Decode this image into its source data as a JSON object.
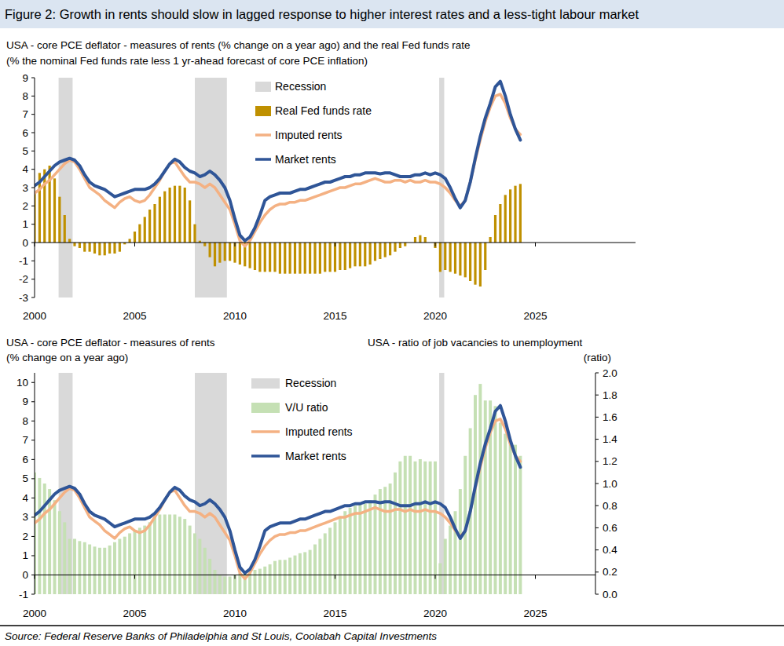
{
  "title": "Figure 2: Growth in rents should slow in lagged response to higher interest rates and a less-tight labour market",
  "source": "Source: Federal Reserve Banks of Philadelphia and St Louis, Coolabah Capital Investments",
  "chart_data": [
    {
      "type": "line",
      "title": "USA - core PCE deflator - measures of rents (% change on a year ago)  and  the real Fed funds rate",
      "subtitle": "(% the nominal Fed funds rate less 1 yr-ahead forecast of core PCE inflation)",
      "legend": "top",
      "grid": false,
      "xlim": [
        2000,
        2030
      ],
      "xticks": [
        2000,
        2005,
        2010,
        2015,
        2020,
        2025
      ],
      "ylim": [
        -3,
        9
      ],
      "yticks": [
        -3,
        -2,
        -1,
        0,
        1,
        2,
        3,
        4,
        5,
        6,
        7,
        8,
        9
      ],
      "recessions": {
        "name": "Recession",
        "color": "#d9d9d9",
        "ranges": [
          [
            2001.2,
            2001.9
          ],
          [
            2008.0,
            2009.6
          ],
          [
            2020.2,
            2020.45
          ]
        ]
      },
      "x": [
        2000,
        2000.25,
        2000.5,
        2000.75,
        2001,
        2001.25,
        2001.5,
        2001.75,
        2002,
        2002.25,
        2002.5,
        2002.75,
        2003,
        2003.25,
        2003.5,
        2003.75,
        2004,
        2004.25,
        2004.5,
        2004.75,
        2005,
        2005.25,
        2005.5,
        2005.75,
        2006,
        2006.25,
        2006.5,
        2006.75,
        2007,
        2007.25,
        2007.5,
        2007.75,
        2008,
        2008.25,
        2008.5,
        2008.75,
        2009,
        2009.25,
        2009.5,
        2009.75,
        2010,
        2010.25,
        2010.5,
        2010.75,
        2011,
        2011.25,
        2011.5,
        2011.75,
        2012,
        2012.25,
        2012.5,
        2012.75,
        2013,
        2013.25,
        2013.5,
        2013.75,
        2014,
        2014.25,
        2014.5,
        2014.75,
        2015,
        2015.25,
        2015.5,
        2015.75,
        2016,
        2016.25,
        2016.5,
        2016.75,
        2017,
        2017.25,
        2017.5,
        2017.75,
        2018,
        2018.25,
        2018.5,
        2018.75,
        2019,
        2019.25,
        2019.5,
        2019.75,
        2020,
        2020.25,
        2020.5,
        2020.75,
        2021,
        2021.25,
        2021.5,
        2021.75,
        2022,
        2022.25,
        2022.5,
        2022.75,
        2023,
        2023.25,
        2023.5,
        2023.75,
        2024,
        2024.25
      ],
      "series": [
        {
          "name": "Real Fed funds rate",
          "type": "bar",
          "color": "#bf9000",
          "values": [
            2.8,
            3.8,
            4.0,
            4.2,
            3.5,
            2.5,
            1.5,
            0.2,
            -0.2,
            -0.3,
            -0.5,
            -0.5,
            -0.6,
            -0.7,
            -0.7,
            -0.6,
            -0.6,
            -0.5,
            -0.1,
            0.2,
            0.6,
            1.0,
            1.4,
            1.8,
            2.1,
            2.5,
            2.8,
            3.0,
            3.1,
            3.1,
            3.0,
            2.3,
            1.0,
            0.1,
            -0.2,
            -0.8,
            -1.3,
            -1.1,
            -1.0,
            -1.0,
            -1.1,
            -1.2,
            -1.3,
            -1.4,
            -1.5,
            -1.6,
            -1.6,
            -1.6,
            -1.6,
            -1.7,
            -1.7,
            -1.7,
            -1.7,
            -1.7,
            -1.7,
            -1.7,
            -1.7,
            -1.7,
            -1.6,
            -1.6,
            -1.6,
            -1.5,
            -1.5,
            -1.4,
            -1.3,
            -1.3,
            -1.3,
            -1.2,
            -1.0,
            -0.9,
            -0.8,
            -0.7,
            -0.5,
            -0.3,
            -0.2,
            0.0,
            0.3,
            0.4,
            0.3,
            0.0,
            -0.3,
            -1.6,
            -1.5,
            -1.6,
            -1.7,
            -1.8,
            -1.9,
            -2.1,
            -2.3,
            -2.4,
            -1.5,
            0.3,
            1.5,
            2.1,
            2.6,
            2.9,
            3.1,
            3.2
          ]
        },
        {
          "name": "Imputed rents",
          "type": "line",
          "color": "#f4b183",
          "values": [
            2.7,
            2.9,
            3.2,
            3.4,
            3.7,
            4.0,
            4.3,
            4.5,
            4.4,
            4.0,
            3.5,
            3.0,
            2.8,
            2.6,
            2.3,
            2.1,
            1.9,
            2.2,
            2.4,
            2.5,
            2.3,
            2.2,
            2.3,
            2.6,
            3.0,
            3.4,
            3.9,
            4.3,
            4.4,
            4.0,
            3.6,
            3.3,
            3.3,
            3.2,
            3.0,
            3.2,
            3.0,
            2.6,
            2.2,
            1.8,
            1.0,
            0.1,
            -0.2,
            0.1,
            0.6,
            1.1,
            1.5,
            1.8,
            2.0,
            2.1,
            2.1,
            2.2,
            2.2,
            2.3,
            2.3,
            2.4,
            2.5,
            2.6,
            2.7,
            2.8,
            2.9,
            3.0,
            3.0,
            3.1,
            3.2,
            3.2,
            3.3,
            3.4,
            3.5,
            3.4,
            3.3,
            3.3,
            3.4,
            3.4,
            3.3,
            3.4,
            3.3,
            3.3,
            3.4,
            3.3,
            3.3,
            3.2,
            3.0,
            2.7,
            2.3,
            2.0,
            2.3,
            3.3,
            4.5,
            5.6,
            6.6,
            7.4,
            8.0,
            8.1,
            7.6,
            6.8,
            6.2,
            5.9
          ]
        },
        {
          "name": "Market rents",
          "type": "line",
          "color": "#2f5597",
          "values": [
            3.1,
            3.3,
            3.6,
            3.9,
            4.2,
            4.4,
            4.5,
            4.6,
            4.5,
            4.2,
            3.7,
            3.3,
            3.1,
            3.0,
            2.9,
            2.7,
            2.5,
            2.6,
            2.7,
            2.8,
            2.9,
            2.9,
            2.9,
            3.0,
            3.2,
            3.5,
            3.9,
            4.3,
            4.55,
            4.4,
            4.1,
            3.9,
            3.8,
            3.6,
            3.7,
            3.9,
            3.7,
            3.4,
            3.0,
            2.3,
            1.3,
            0.4,
            0.1,
            0.3,
            0.8,
            1.5,
            2.3,
            2.5,
            2.6,
            2.7,
            2.7,
            2.7,
            2.8,
            2.9,
            2.9,
            3.0,
            3.1,
            3.2,
            3.3,
            3.3,
            3.4,
            3.5,
            3.6,
            3.6,
            3.7,
            3.7,
            3.8,
            3.8,
            3.8,
            3.75,
            3.8,
            3.8,
            3.7,
            3.6,
            3.6,
            3.6,
            3.7,
            3.7,
            3.8,
            3.7,
            3.8,
            3.7,
            3.5,
            3.0,
            2.4,
            1.9,
            2.3,
            3.3,
            4.6,
            5.8,
            6.8,
            7.6,
            8.5,
            8.8,
            8.0,
            7.0,
            6.2,
            5.6
          ]
        }
      ]
    },
    {
      "type": "line",
      "title": "USA - core PCE deflator - measures of rents",
      "subtitle": "(% change on a year ago)",
      "y2_title": "USA - ratio of job vacancies to unemployment",
      "y2_label": "(ratio)",
      "legend": "top",
      "grid": false,
      "xlim": [
        2000,
        2028
      ],
      "xticks": [
        2000,
        2005,
        2010,
        2015,
        2020,
        2025
      ],
      "ylim": [
        -1,
        10.5
      ],
      "yticks": [
        -1,
        0,
        1,
        2,
        3,
        4,
        5,
        6,
        7,
        8,
        9,
        10
      ],
      "y2lim": [
        0,
        2
      ],
      "y2ticks": [
        {
          "value": 0,
          "label": "0.0"
        },
        {
          "value": 0.2,
          "label": "0.2"
        },
        {
          "value": 0.4,
          "label": "0.4"
        },
        {
          "value": 0.6,
          "label": "0.6"
        },
        {
          "value": 0.8,
          "label": "0.8"
        },
        {
          "value": 1,
          "label": "1.0"
        },
        {
          "value": 1.2,
          "label": "1.2"
        },
        {
          "value": 1.4,
          "label": "1.4"
        },
        {
          "value": 1.6,
          "label": "1.6"
        },
        {
          "value": 1.8,
          "label": "1.8"
        },
        {
          "value": 2,
          "label": "2.0"
        }
      ],
      "recessions": {
        "name": "Recession",
        "color": "#d9d9d9",
        "ranges": [
          [
            2001.2,
            2001.9
          ],
          [
            2008.0,
            2009.6
          ],
          [
            2020.2,
            2020.45
          ]
        ]
      },
      "x": [
        2000,
        2000.25,
        2000.5,
        2000.75,
        2001,
        2001.25,
        2001.5,
        2001.75,
        2002,
        2002.25,
        2002.5,
        2002.75,
        2003,
        2003.25,
        2003.5,
        2003.75,
        2004,
        2004.25,
        2004.5,
        2004.75,
        2005,
        2005.25,
        2005.5,
        2005.75,
        2006,
        2006.25,
        2006.5,
        2006.75,
        2007,
        2007.25,
        2007.5,
        2007.75,
        2008,
        2008.25,
        2008.5,
        2008.75,
        2009,
        2009.25,
        2009.5,
        2009.75,
        2010,
        2010.25,
        2010.5,
        2010.75,
        2011,
        2011.25,
        2011.5,
        2011.75,
        2012,
        2012.25,
        2012.5,
        2012.75,
        2013,
        2013.25,
        2013.5,
        2013.75,
        2014,
        2014.25,
        2014.5,
        2014.75,
        2015,
        2015.25,
        2015.5,
        2015.75,
        2016,
        2016.25,
        2016.5,
        2016.75,
        2017,
        2017.25,
        2017.5,
        2017.75,
        2018,
        2018.25,
        2018.5,
        2018.75,
        2019,
        2019.25,
        2019.5,
        2019.75,
        2020,
        2020.25,
        2020.5,
        2020.75,
        2021,
        2021.25,
        2021.5,
        2021.75,
        2022,
        2022.25,
        2022.5,
        2022.75,
        2023,
        2023.25,
        2023.5,
        2023.75,
        2024,
        2024.25
      ],
      "series": [
        {
          "name": "V/U ratio",
          "type": "bar",
          "axis": "y2",
          "color": "#c5e0b4",
          "values": [
            1.1,
            1.05,
            1.0,
            0.95,
            0.85,
            0.75,
            0.65,
            0.5,
            0.5,
            0.48,
            0.47,
            0.45,
            0.43,
            0.42,
            0.42,
            0.44,
            0.47,
            0.5,
            0.52,
            0.55,
            0.58,
            0.6,
            0.62,
            0.65,
            0.7,
            0.72,
            0.72,
            0.72,
            0.72,
            0.7,
            0.68,
            0.62,
            0.55,
            0.5,
            0.42,
            0.32,
            0.22,
            0.17,
            0.16,
            0.16,
            0.17,
            0.19,
            0.2,
            0.21,
            0.22,
            0.23,
            0.25,
            0.27,
            0.3,
            0.31,
            0.31,
            0.33,
            0.35,
            0.37,
            0.38,
            0.4,
            0.45,
            0.5,
            0.55,
            0.6,
            0.65,
            0.7,
            0.75,
            0.78,
            0.8,
            0.82,
            0.82,
            0.85,
            0.9,
            0.95,
            0.97,
            1.0,
            1.1,
            1.2,
            1.25,
            1.25,
            1.2,
            1.22,
            1.2,
            1.2,
            1.2,
            0.28,
            0.5,
            0.62,
            0.75,
            0.95,
            1.25,
            1.5,
            1.8,
            1.9,
            1.75,
            1.75,
            1.7,
            1.55,
            1.45,
            1.4,
            1.35,
            1.25
          ]
        },
        {
          "name": "Imputed rents",
          "type": "line",
          "color": "#f4b183",
          "values": [
            2.7,
            2.9,
            3.2,
            3.4,
            3.7,
            4.0,
            4.3,
            4.5,
            4.4,
            4.0,
            3.5,
            3.0,
            2.8,
            2.6,
            2.3,
            2.1,
            1.9,
            2.2,
            2.4,
            2.5,
            2.3,
            2.2,
            2.3,
            2.6,
            3.0,
            3.4,
            3.9,
            4.3,
            4.4,
            4.0,
            3.6,
            3.3,
            3.3,
            3.2,
            3.0,
            3.2,
            3.0,
            2.6,
            2.2,
            1.8,
            1.0,
            0.1,
            -0.2,
            0.1,
            0.6,
            1.1,
            1.5,
            1.8,
            2.0,
            2.1,
            2.1,
            2.2,
            2.2,
            2.3,
            2.3,
            2.4,
            2.5,
            2.6,
            2.7,
            2.8,
            2.9,
            3.0,
            3.0,
            3.1,
            3.2,
            3.2,
            3.3,
            3.4,
            3.5,
            3.4,
            3.3,
            3.3,
            3.4,
            3.4,
            3.3,
            3.4,
            3.3,
            3.3,
            3.4,
            3.3,
            3.3,
            3.2,
            3.0,
            2.7,
            2.3,
            2.0,
            2.3,
            3.3,
            4.5,
            5.6,
            6.6,
            7.4,
            8.0,
            8.1,
            7.6,
            6.8,
            6.2,
            5.9
          ]
        },
        {
          "name": "Market rents",
          "type": "line",
          "color": "#2f5597",
          "values": [
            3.1,
            3.3,
            3.6,
            3.9,
            4.2,
            4.4,
            4.5,
            4.6,
            4.5,
            4.2,
            3.7,
            3.3,
            3.1,
            3.0,
            2.9,
            2.7,
            2.5,
            2.6,
            2.7,
            2.8,
            2.9,
            2.9,
            2.9,
            3.0,
            3.2,
            3.5,
            3.9,
            4.3,
            4.55,
            4.4,
            4.1,
            3.9,
            3.8,
            3.6,
            3.7,
            3.9,
            3.7,
            3.4,
            3.0,
            2.3,
            1.3,
            0.4,
            0.1,
            0.3,
            0.8,
            1.5,
            2.3,
            2.5,
            2.6,
            2.7,
            2.7,
            2.7,
            2.8,
            2.9,
            2.9,
            3.0,
            3.1,
            3.2,
            3.3,
            3.3,
            3.4,
            3.5,
            3.6,
            3.6,
            3.7,
            3.7,
            3.8,
            3.8,
            3.8,
            3.75,
            3.8,
            3.8,
            3.7,
            3.6,
            3.6,
            3.6,
            3.7,
            3.7,
            3.8,
            3.7,
            3.8,
            3.7,
            3.5,
            3.0,
            2.4,
            1.9,
            2.3,
            3.3,
            4.6,
            5.8,
            6.8,
            7.6,
            8.5,
            8.8,
            8.0,
            7.0,
            6.2,
            5.6
          ]
        }
      ]
    }
  ]
}
